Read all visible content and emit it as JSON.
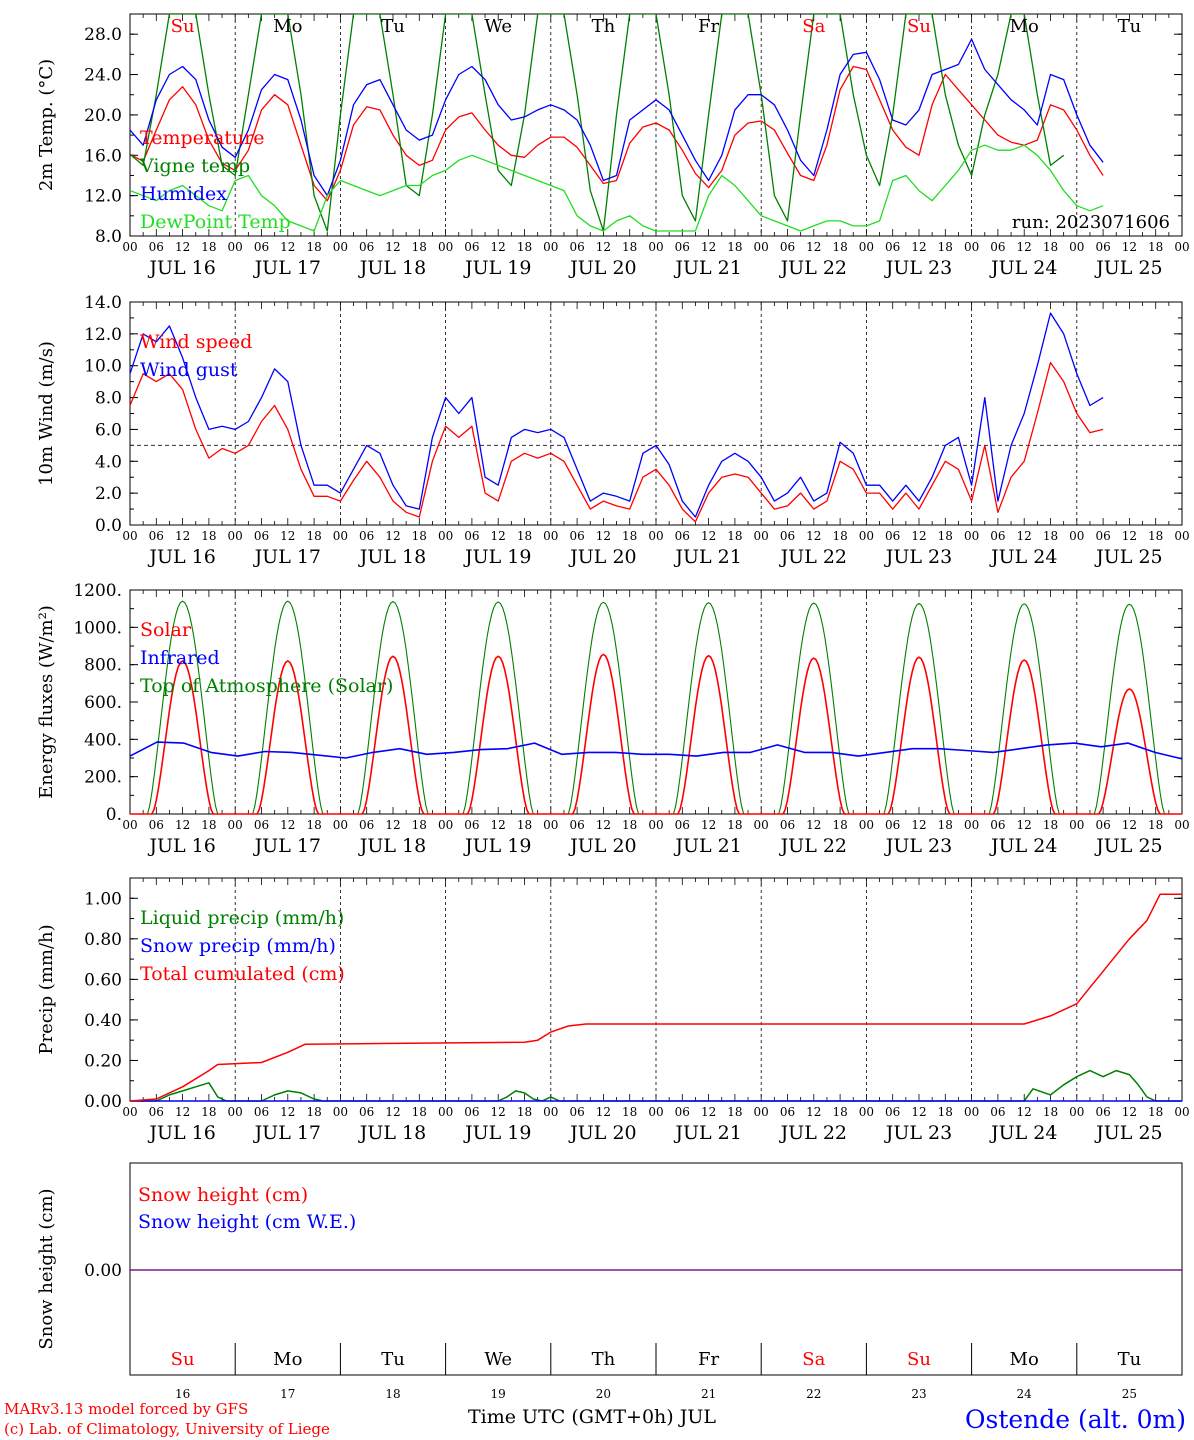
{
  "chart_data": [
    {
      "type": "line",
      "ylabel": "2m Temp. (°C)",
      "ylim": [
        8,
        30
      ],
      "yticks": [
        "8.0",
        "12.0",
        "16.0",
        "20.0",
        "24.0",
        "28.0"
      ],
      "day_labels": [
        "JUL 16",
        "JUL 17",
        "JUL 18",
        "JUL 19",
        "JUL 20",
        "JUL 21",
        "JUL 22",
        "JUL 23",
        "JUL 24",
        "JUL 25"
      ],
      "weekdays": [
        "Su",
        "Mo",
        "Tu",
        "We",
        "Th",
        "Fr",
        "Sa",
        "Su",
        "Mo",
        "Tu"
      ],
      "run_label": "run: 2023071606",
      "x_hours": [
        0,
        3,
        6,
        9,
        12,
        15,
        18,
        21,
        24,
        27,
        30,
        33,
        36,
        39,
        42,
        45,
        48,
        51,
        54,
        57,
        60,
        63,
        66,
        69,
        72,
        75,
        78,
        81,
        84,
        87,
        90,
        93,
        96,
        99,
        102,
        105,
        108,
        111,
        114,
        117,
        120,
        123,
        126,
        129,
        132,
        135,
        138,
        141,
        144,
        147,
        150,
        153,
        156,
        159,
        162,
        165,
        168,
        171,
        174,
        177,
        180,
        183,
        186,
        189,
        192,
        195,
        198,
        201,
        204,
        207,
        210,
        213,
        216,
        219,
        222,
        225,
        228,
        231,
        234,
        237,
        240
      ],
      "series": [
        {
          "name": "Temperature",
          "color": "#ff0000",
          "values": [
            16.1,
            15.4,
            18.5,
            21.5,
            22.8,
            21.0,
            17.5,
            15.2,
            14.5,
            16.5,
            20.5,
            22.0,
            21.0,
            17.0,
            13.0,
            11.5,
            14.5,
            19.0,
            20.8,
            20.5,
            18.0,
            16.0,
            15.0,
            15.5,
            18.5,
            19.8,
            20.2,
            18.5,
            17.0,
            16.0,
            15.8,
            17.0,
            17.8,
            17.8,
            16.8,
            15.0,
            13.2,
            13.5,
            17.2,
            18.8,
            19.2,
            18.5,
            16.5,
            14.2,
            12.8,
            14.5,
            18.0,
            19.2,
            19.4,
            18.5,
            16.2,
            14.0,
            13.5,
            17.0,
            22.5,
            24.8,
            24.5,
            21.5,
            18.5,
            16.8,
            16.0,
            21.0,
            24.0,
            22.5,
            21.0,
            19.5,
            18.0,
            17.3,
            17.0,
            17.5,
            21.0,
            20.5,
            18.5,
            16.0,
            14.0
          ]
        },
        {
          "name": "Vigne temp",
          "color": "#008000",
          "values": [
            16.1,
            15.0,
            22.0,
            30.0,
            30.0,
            30.0,
            22.0,
            15.0,
            14.0,
            22.0,
            30.0,
            30.0,
            30.0,
            22.0,
            12.0,
            8.5,
            20.0,
            30.0,
            30.0,
            30.0,
            22.0,
            13.0,
            12.0,
            20.0,
            30.0,
            30.0,
            30.0,
            22.0,
            14.5,
            13.0,
            20.0,
            30.0,
            30.0,
            30.0,
            22.0,
            12.5,
            8.5,
            20.0,
            30.0,
            30.0,
            30.0,
            22.0,
            12.0,
            9.5,
            20.0,
            30.0,
            30.0,
            30.0,
            22.0,
            12.0,
            9.5,
            20.0,
            30.0,
            30.0,
            30.0,
            22.0,
            16.0,
            13.0,
            20.0,
            30.0,
            30.0,
            30.0,
            22.0,
            17.0,
            14.0,
            20.0,
            24.0,
            30.0,
            30.0,
            22.0,
            15.0,
            16.0
          ]
        },
        {
          "name": "Humidex",
          "color": "#0000ff",
          "values": [
            18.5,
            17.0,
            21.5,
            24.0,
            24.8,
            23.5,
            19.5,
            16.8,
            15.8,
            18.5,
            22.5,
            24.0,
            23.5,
            19.5,
            14.0,
            12.0,
            15.5,
            21.0,
            23.0,
            23.5,
            21.0,
            18.5,
            17.5,
            18.0,
            21.5,
            24.0,
            24.8,
            23.5,
            21.0,
            19.5,
            19.8,
            20.5,
            21.0,
            20.5,
            19.5,
            17.0,
            13.5,
            14.0,
            19.5,
            20.5,
            21.5,
            20.5,
            18.0,
            15.5,
            13.5,
            16.0,
            20.5,
            22.0,
            22.0,
            21.0,
            18.5,
            15.5,
            14.0,
            18.5,
            24.0,
            26.0,
            26.2,
            23.5,
            19.5,
            19.0,
            20.5,
            24.0,
            24.5,
            25.0,
            27.5,
            24.5,
            23.0,
            21.5,
            20.5,
            19.0,
            24.0,
            23.5,
            20.0,
            17.0,
            15.3
          ]
        },
        {
          "name": "DewPoint Temp",
          "color": "#22dd22",
          "values": [
            12.5,
            12.0,
            11.5,
            12.5,
            13.0,
            12.0,
            11.0,
            10.5,
            13.5,
            14.0,
            12.0,
            11.0,
            9.5,
            9.0,
            8.5,
            12.0,
            13.5,
            13.0,
            12.5,
            12.0,
            12.5,
            13.0,
            13.0,
            14.0,
            14.5,
            15.5,
            16.0,
            15.5,
            15.0,
            14.5,
            14.0,
            13.5,
            13.0,
            12.5,
            10.0,
            9.0,
            8.5,
            9.5,
            10.0,
            9.0,
            8.5,
            8.5,
            8.5,
            8.5,
            12.0,
            14.0,
            13.0,
            11.5,
            10.0,
            9.5,
            9.0,
            8.5,
            9.0,
            9.5,
            9.5,
            9.0,
            9.0,
            9.5,
            13.5,
            14.0,
            12.5,
            11.5,
            13.0,
            14.5,
            16.5,
            17.0,
            16.5,
            16.5,
            17.0,
            16.0,
            14.5,
            12.5,
            11.0,
            10.5,
            11.0
          ]
        }
      ]
    },
    {
      "type": "line",
      "ylabel": "10m Wind (m/s)",
      "ylim": [
        0,
        14
      ],
      "yticks": [
        "0.0",
        "2.0",
        "4.0",
        "6.0",
        "8.0",
        "10.0",
        "12.0",
        "14.0"
      ],
      "day_labels": [
        "JUL 16",
        "JUL 17",
        "JUL 18",
        "JUL 19",
        "JUL 20",
        "JUL 21",
        "JUL 22",
        "JUL 23",
        "JUL 24",
        "JUL 25"
      ],
      "reference_line": 5.0,
      "x_hours": [
        0,
        3,
        6,
        9,
        12,
        15,
        18,
        21,
        24,
        27,
        30,
        33,
        36,
        39,
        42,
        45,
        48,
        51,
        54,
        57,
        60,
        63,
        66,
        69,
        72,
        75,
        78,
        81,
        84,
        87,
        90,
        93,
        96,
        99,
        102,
        105,
        108,
        111,
        114,
        117,
        120,
        123,
        126,
        129,
        132,
        135,
        138,
        141,
        144,
        147,
        150,
        153,
        156,
        159,
        162,
        165,
        168,
        171,
        174,
        177,
        180,
        183,
        186,
        189,
        192,
        195,
        198,
        201,
        204,
        207,
        210,
        213,
        216,
        219,
        222,
        225,
        228,
        231,
        234,
        237,
        240
      ],
      "series": [
        {
          "name": "Wind speed",
          "color": "#ff0000",
          "values": [
            7.5,
            9.5,
            9.0,
            9.5,
            8.5,
            6.0,
            4.2,
            4.8,
            4.5,
            5.0,
            6.5,
            7.5,
            6.0,
            3.5,
            1.8,
            1.8,
            1.5,
            2.8,
            4.0,
            3.0,
            1.5,
            0.8,
            0.5,
            4.0,
            6.2,
            5.5,
            6.2,
            2.0,
            1.5,
            4.0,
            4.5,
            4.2,
            4.5,
            4.0,
            2.5,
            1.0,
            1.5,
            1.2,
            1.0,
            3.0,
            3.5,
            2.5,
            1.0,
            0.2,
            2.0,
            3.0,
            3.2,
            3.0,
            2.0,
            1.0,
            1.2,
            2.0,
            1.0,
            1.5,
            4.0,
            3.5,
            2.0,
            2.0,
            1.0,
            2.0,
            1.0,
            2.5,
            4.0,
            3.5,
            1.5,
            5.0,
            0.8,
            3.0,
            4.0,
            7.0,
            10.2,
            9.0,
            7.0,
            5.8,
            6.0
          ]
        },
        {
          "name": "Wind gust",
          "color": "#0000ff",
          "values": [
            9.5,
            12.0,
            11.5,
            12.5,
            10.5,
            8.0,
            6.0,
            6.2,
            6.0,
            6.5,
            8.0,
            9.8,
            9.0,
            5.0,
            2.5,
            2.5,
            2.0,
            3.5,
            5.0,
            4.5,
            2.5,
            1.2,
            1.0,
            5.5,
            8.0,
            7.0,
            8.0,
            3.0,
            2.5,
            5.5,
            6.0,
            5.8,
            6.0,
            5.5,
            3.5,
            1.5,
            2.0,
            1.8,
            1.5,
            4.5,
            5.0,
            3.8,
            1.5,
            0.5,
            2.5,
            4.0,
            4.5,
            4.0,
            3.0,
            1.5,
            2.0,
            3.0,
            1.5,
            2.0,
            5.2,
            4.5,
            2.5,
            2.5,
            1.5,
            2.5,
            1.5,
            3.0,
            5.0,
            5.5,
            2.5,
            8.0,
            1.5,
            5.0,
            7.0,
            10.0,
            13.3,
            12.0,
            9.5,
            7.5,
            8.0
          ]
        }
      ]
    },
    {
      "type": "line",
      "ylabel": "Energy fluxes (W/m²)",
      "ylim": [
        0,
        1200
      ],
      "yticks": [
        "0.",
        "200.",
        "400.",
        "600.",
        "800.",
        "1000.",
        "1200."
      ],
      "day_labels": [
        "JUL 16",
        "JUL 17",
        "JUL 18",
        "JUL 19",
        "JUL 20",
        "JUL 21",
        "JUL 22",
        "JUL 23",
        "JUL 24",
        "JUL 25"
      ],
      "daily_peaks": {
        "Solar": [
          820,
          820,
          845,
          845,
          855,
          848,
          835,
          840,
          825,
          670
        ],
        "Top of Atmosphere (Solar)": [
          1140,
          1140,
          1138,
          1136,
          1134,
          1132,
          1130,
          1128,
          1126,
          1124
        ]
      },
      "series": [
        {
          "name": "Solar",
          "color": "#ff0000"
        },
        {
          "name": "Infrared",
          "color": "#0000ff",
          "values": [
            310,
            385,
            380,
            330,
            310,
            335,
            330,
            315,
            300,
            330,
            350,
            320,
            330,
            345,
            350,
            380,
            320,
            330,
            330,
            320,
            320,
            310,
            330,
            330,
            370,
            330,
            330,
            310,
            330,
            350,
            350,
            340,
            330,
            350,
            370,
            380,
            360,
            380,
            330,
            295
          ]
        },
        {
          "name": "Top of Atmosphere (Solar)",
          "color": "#008000"
        }
      ]
    },
    {
      "type": "line",
      "ylabel": "Precip (mm/h)",
      "ylim": [
        0,
        1.1
      ],
      "yticks": [
        "0.00",
        "0.20",
        "0.40",
        "0.60",
        "0.80",
        "1.00"
      ],
      "day_labels": [
        "JUL 16",
        "JUL 17",
        "JUL 18",
        "JUL 19",
        "JUL 20",
        "JUL 21",
        "JUL 22",
        "JUL 23",
        "JUL 24",
        "JUL 25"
      ],
      "series": [
        {
          "name": "Liquid precip (mm/h)",
          "color": "#008000",
          "points": [
            [
              0,
              0
            ],
            [
              6,
              0
            ],
            [
              9,
              0.03
            ],
            [
              12,
              0.05
            ],
            [
              15,
              0.07
            ],
            [
              18,
              0.09
            ],
            [
              20,
              0.02
            ],
            [
              22,
              0
            ],
            [
              30,
              0
            ],
            [
              33,
              0.03
            ],
            [
              36,
              0.05
            ],
            [
              39,
              0.04
            ],
            [
              42,
              0.01
            ],
            [
              44,
              0
            ],
            [
              84,
              0
            ],
            [
              86,
              0.02
            ],
            [
              88,
              0.05
            ],
            [
              90,
              0.04
            ],
            [
              92,
              0.01
            ],
            [
              94,
              0
            ],
            [
              96,
              0.02
            ],
            [
              98,
              0
            ],
            [
              204,
              0
            ],
            [
              206,
              0.06
            ],
            [
              210,
              0.03
            ],
            [
              213,
              0.08
            ],
            [
              216,
              0.12
            ],
            [
              219,
              0.15
            ],
            [
              222,
              0.12
            ],
            [
              225,
              0.15
            ],
            [
              228,
              0.13
            ],
            [
              230,
              0.08
            ],
            [
              232,
              0.02
            ],
            [
              234,
              0
            ],
            [
              240,
              0
            ]
          ]
        },
        {
          "name": "Snow precip (mm/h)",
          "color": "#0000ff",
          "points": [
            [
              0,
              0
            ],
            [
              240,
              0
            ]
          ]
        },
        {
          "name": "Total cumulated (cm)",
          "color": "#ff0000",
          "points": [
            [
              0,
              0
            ],
            [
              6,
              0.01
            ],
            [
              12,
              0.07
            ],
            [
              18,
              0.15
            ],
            [
              20,
              0.18
            ],
            [
              30,
              0.19
            ],
            [
              36,
              0.24
            ],
            [
              40,
              0.28
            ],
            [
              90,
              0.29
            ],
            [
              93,
              0.3
            ],
            [
              96,
              0.34
            ],
            [
              100,
              0.37
            ],
            [
              104,
              0.38
            ],
            [
              204,
              0.38
            ],
            [
              210,
              0.42
            ],
            [
              216,
              0.48
            ],
            [
              222,
              0.64
            ],
            [
              228,
              0.8
            ],
            [
              232,
              0.89
            ],
            [
              235,
              1.02
            ],
            [
              240,
              1.02
            ]
          ]
        }
      ]
    },
    {
      "type": "line",
      "ylabel": "Snow height (cm)",
      "yticks": [
        "0.00"
      ],
      "weekdays": [
        "Su",
        "Mo",
        "Tu",
        "We",
        "Th",
        "Fr",
        "Sa",
        "Su",
        "Mo",
        "Tu"
      ],
      "day_numbers": [
        "16",
        "17",
        "18",
        "19",
        "20",
        "21",
        "22",
        "23",
        "24",
        "25"
      ],
      "xlabel": "Time UTC (GMT+0h) JUL",
      "series": [
        {
          "name": "Snow height (cm)",
          "color": "#ff0000",
          "values": [
            0,
            0
          ]
        },
        {
          "name": "Snow height (cm W.E.)",
          "color": "#0000ff",
          "values": [
            0,
            0
          ]
        }
      ]
    }
  ],
  "footer": {
    "credit_line1": "MARv3.13 model forced by GFS",
    "credit_line2": "(c) Lab. of Climatology, University of Liege",
    "station": "Ostende (alt. 0m)"
  },
  "hour_ticks": [
    "00",
    "06",
    "12",
    "18"
  ],
  "colors": {
    "red": "#ff0000",
    "green": "#008000",
    "blue": "#0000ff",
    "light_green": "#22dd22",
    "weekend_day": "#ff0000",
    "weekday": "#000000"
  }
}
